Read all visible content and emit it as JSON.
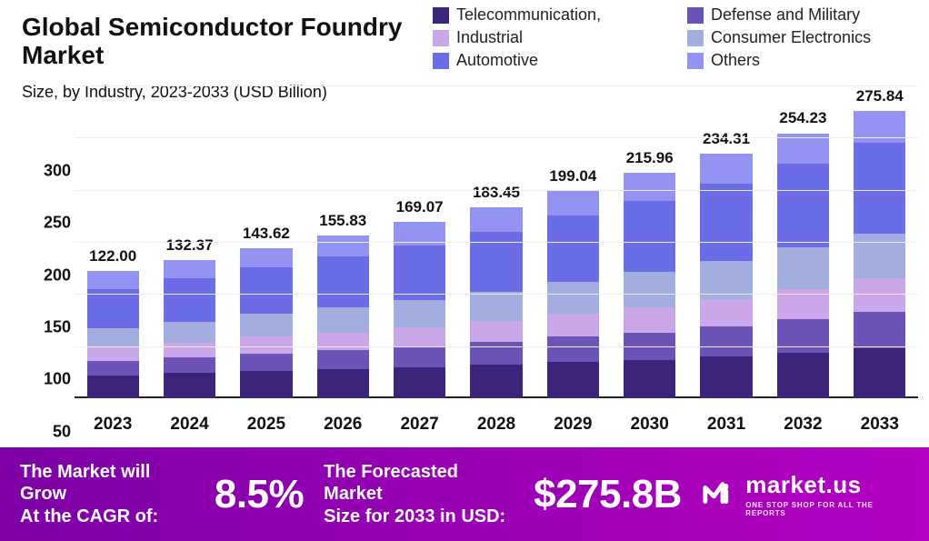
{
  "title_line1": "Global Semiconductor Foundry",
  "title_line2": "Market",
  "subtitle": "Size, by Industry, 2023-2033 (USD Billion)",
  "chart": {
    "type": "stacked-bar",
    "ylim": [
      0,
      300
    ],
    "ytick_step": 50,
    "yticks": [
      0,
      50,
      100,
      150,
      200,
      250,
      300
    ],
    "ytick_fontsize": 18,
    "xtick_fontsize": 19,
    "total_label_fontsize": 17,
    "title_fontsize": 28,
    "subtitle_fontsize": 18,
    "legend_fontsize": 18,
    "background_color": "#ffffff",
    "grid_color": "#eeeeee",
    "axis_color": "#222222",
    "bar_width": 0.68,
    "categories": [
      "2023",
      "2024",
      "2025",
      "2026",
      "2027",
      "2028",
      "2029",
      "2030",
      "2031",
      "2032",
      "2033"
    ],
    "series": [
      {
        "name": "Telecommunication,",
        "color": "#3d247a"
      },
      {
        "name": "Defense and Military",
        "color": "#6b53b8"
      },
      {
        "name": "Industrial",
        "color": "#c9a7e8"
      },
      {
        "name": "Consumer Electronics",
        "color": "#a3aee0"
      },
      {
        "name": "Automotive",
        "color": "#6a6de6"
      },
      {
        "name": "Others",
        "color": "#9393f1"
      }
    ],
    "legend_layout": {
      "columns": 2,
      "order": [
        0,
        1,
        2,
        3,
        4,
        5
      ]
    },
    "totals": [
      122.0,
      132.37,
      143.62,
      155.83,
      169.07,
      183.45,
      199.04,
      215.96,
      234.31,
      254.23,
      275.84
    ],
    "values": [
      [
        22,
        14,
        13,
        18,
        38,
        17
      ],
      [
        24,
        15,
        14,
        20,
        42,
        17.37
      ],
      [
        26,
        17,
        16,
        22,
        45,
        17.62
      ],
      [
        28,
        18,
        17,
        24,
        49,
        19.83
      ],
      [
        30,
        20,
        18,
        26,
        53,
        22.07
      ],
      [
        32,
        22,
        20,
        28,
        58,
        23.45
      ],
      [
        35,
        24,
        22,
        31,
        63,
        24.04
      ],
      [
        37,
        26,
        24,
        34,
        68,
        26.96
      ],
      [
        40,
        29,
        26,
        37,
        74,
        28.31
      ],
      [
        44,
        32,
        29,
        40,
        80,
        29.23
      ],
      [
        48,
        35,
        32,
        43,
        87,
        30.84
      ]
    ]
  },
  "footer": {
    "cagr_label": "The Market will Grow\nAt the CAGR of:",
    "cagr_value": "8.5%",
    "forecast_label": "The Forecasted Market\nSize for 2033 in USD:",
    "forecast_value": "$275.8B",
    "brand_name": "market.us",
    "brand_tag": "ONE STOP SHOP FOR ALL THE REPORTS",
    "bg_gradient_from": "#7d00a6",
    "bg_gradient_to": "#b400c1"
  }
}
